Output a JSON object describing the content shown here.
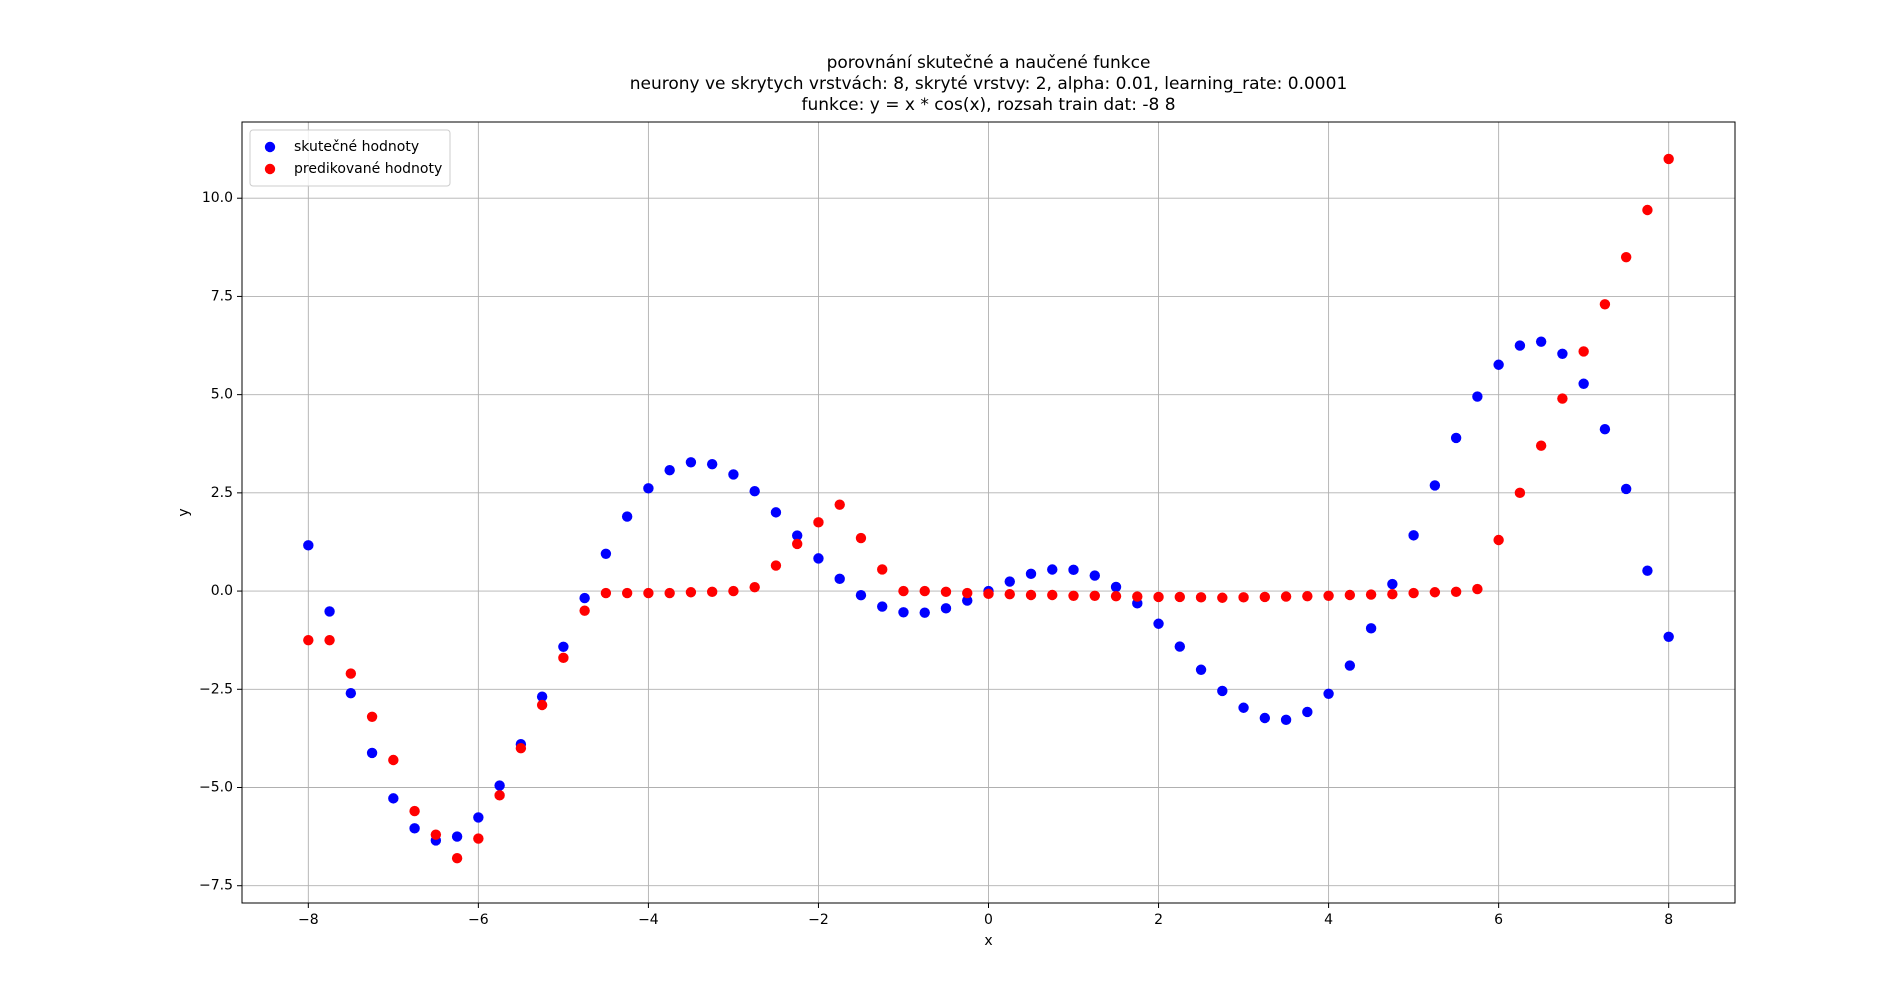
{
  "chart_data": {
    "type": "scatter",
    "title": [
      "porovnání skutečné a naučené funkce",
      "neurony ve skrytych vrstvách: 8, skryté vrstvy: 2, alpha: 0.01, learning_rate: 0.0001",
      "funkce: y = x * cos(x), rozsah train dat: -8 8"
    ],
    "xlabel": "x",
    "ylabel": "y",
    "xlim": [
      -8.78,
      8.78
    ],
    "ylim": [
      -7.94,
      11.94
    ],
    "xticks": [
      {
        "value": -8,
        "label": "−8"
      },
      {
        "value": -6,
        "label": "−6"
      },
      {
        "value": -4,
        "label": "−4"
      },
      {
        "value": -2,
        "label": "−2"
      },
      0,
      2,
      4,
      6,
      8
    ],
    "yticks": [
      {
        "value": -7.5,
        "label": "−7.5"
      },
      {
        "value": -5,
        "label": "−5.0"
      },
      {
        "value": -2.5,
        "label": "−2.5"
      },
      {
        "value": 0,
        "label": "0.0"
      },
      2.5,
      {
        "value": 5,
        "label": "5.0"
      },
      7.5,
      {
        "value": 10,
        "label": "10.0"
      }
    ],
    "grid": true,
    "legend": "upper left",
    "series": [
      {
        "name": "skutečné hodnoty",
        "color": "#0000ff",
        "x": [
          -8,
          -7.75,
          -7.5,
          -7.25,
          -7,
          -6.75,
          -6.5,
          -6.25,
          -6,
          -5.75,
          -5.5,
          -5.25,
          -5,
          -4.75,
          -4.5,
          -4.25,
          -4,
          -3.75,
          -3.5,
          -3.25,
          -3,
          -2.75,
          -2.5,
          -2.25,
          -2,
          -1.75,
          -1.5,
          -1.25,
          -1,
          -0.75,
          -0.5,
          -0.25,
          0,
          0.25,
          0.5,
          0.75,
          1,
          1.25,
          1.5,
          1.75,
          2,
          2.25,
          2.5,
          2.75,
          3,
          3.25,
          3.5,
          3.75,
          4,
          4.25,
          4.5,
          4.75,
          5,
          5.25,
          5.5,
          5.75,
          6,
          6.25,
          6.5,
          6.75,
          7,
          7.25,
          7.5,
          7.75,
          8
        ],
        "values": [
          1.164,
          -0.518,
          -2.6,
          -4.12,
          -5.277,
          -6.04,
          -6.348,
          -6.249,
          -5.761,
          -4.952,
          -3.898,
          -2.689,
          -1.418,
          -0.179,
          0.949,
          1.896,
          2.615,
          3.077,
          3.278,
          3.231,
          2.97,
          2.542,
          2.003,
          1.413,
          0.832,
          0.312,
          -0.106,
          -0.394,
          -0.54,
          -0.549,
          -0.439,
          -0.242,
          0,
          0.242,
          0.439,
          0.549,
          0.54,
          0.394,
          0.106,
          -0.312,
          -0.832,
          -1.413,
          -2.003,
          -2.542,
          -2.97,
          -3.231,
          -3.278,
          -3.077,
          -2.615,
          -1.896,
          -0.949,
          0.179,
          1.418,
          2.689,
          3.898,
          4.952,
          5.761,
          6.249,
          6.348,
          6.04,
          5.277,
          4.12,
          2.6,
          0.518,
          -1.164
        ]
      },
      {
        "name": "predikované hodnoty",
        "color": "#ff0000",
        "x": [
          -8,
          -7.75,
          -7.5,
          -7.25,
          -7,
          -6.75,
          -6.5,
          -6.25,
          -6,
          -5.75,
          -5.5,
          -5.25,
          -5,
          -4.75,
          -4.5,
          -4.25,
          -4,
          -3.75,
          -3.5,
          -3.25,
          -3,
          -2.75,
          -2.5,
          -2.25,
          -2,
          -1.75,
          -1.5,
          -1.25,
          -1,
          -0.75,
          -0.5,
          -0.25,
          0,
          0.25,
          0.5,
          0.75,
          1,
          1.25,
          1.5,
          1.75,
          2,
          2.25,
          2.5,
          2.75,
          3,
          3.25,
          3.5,
          3.75,
          4,
          4.25,
          4.5,
          4.75,
          5,
          5.25,
          5.5,
          5.75,
          6,
          6.25,
          6.5,
          6.75,
          7,
          7.25,
          7.5,
          7.75,
          8
        ],
        "values": [
          -1.25,
          -1.25,
          -2.1,
          -3.2,
          -4.3,
          -5.6,
          -6.2,
          -6.8,
          -6.3,
          -5.2,
          -4,
          -2.9,
          -1.7,
          -0.5,
          -0.05,
          -0.05,
          -0.05,
          -0.05,
          -0.03,
          -0.02,
          0,
          0.1,
          0.65,
          1.2,
          1.75,
          2.2,
          1.35,
          0.55,
          0,
          0,
          -0.02,
          -0.05,
          -0.07,
          -0.08,
          -0.1,
          -0.1,
          -0.12,
          -0.12,
          -0.13,
          -0.14,
          -0.15,
          -0.15,
          -0.16,
          -0.17,
          -0.16,
          -0.15,
          -0.14,
          -0.13,
          -0.12,
          -0.1,
          -0.09,
          -0.08,
          -0.05,
          -0.03,
          -0.02,
          0.05,
          1.3,
          2.5,
          3.7,
          4.9,
          6.1,
          7.3,
          8.5,
          9.7,
          11
        ]
      }
    ]
  }
}
